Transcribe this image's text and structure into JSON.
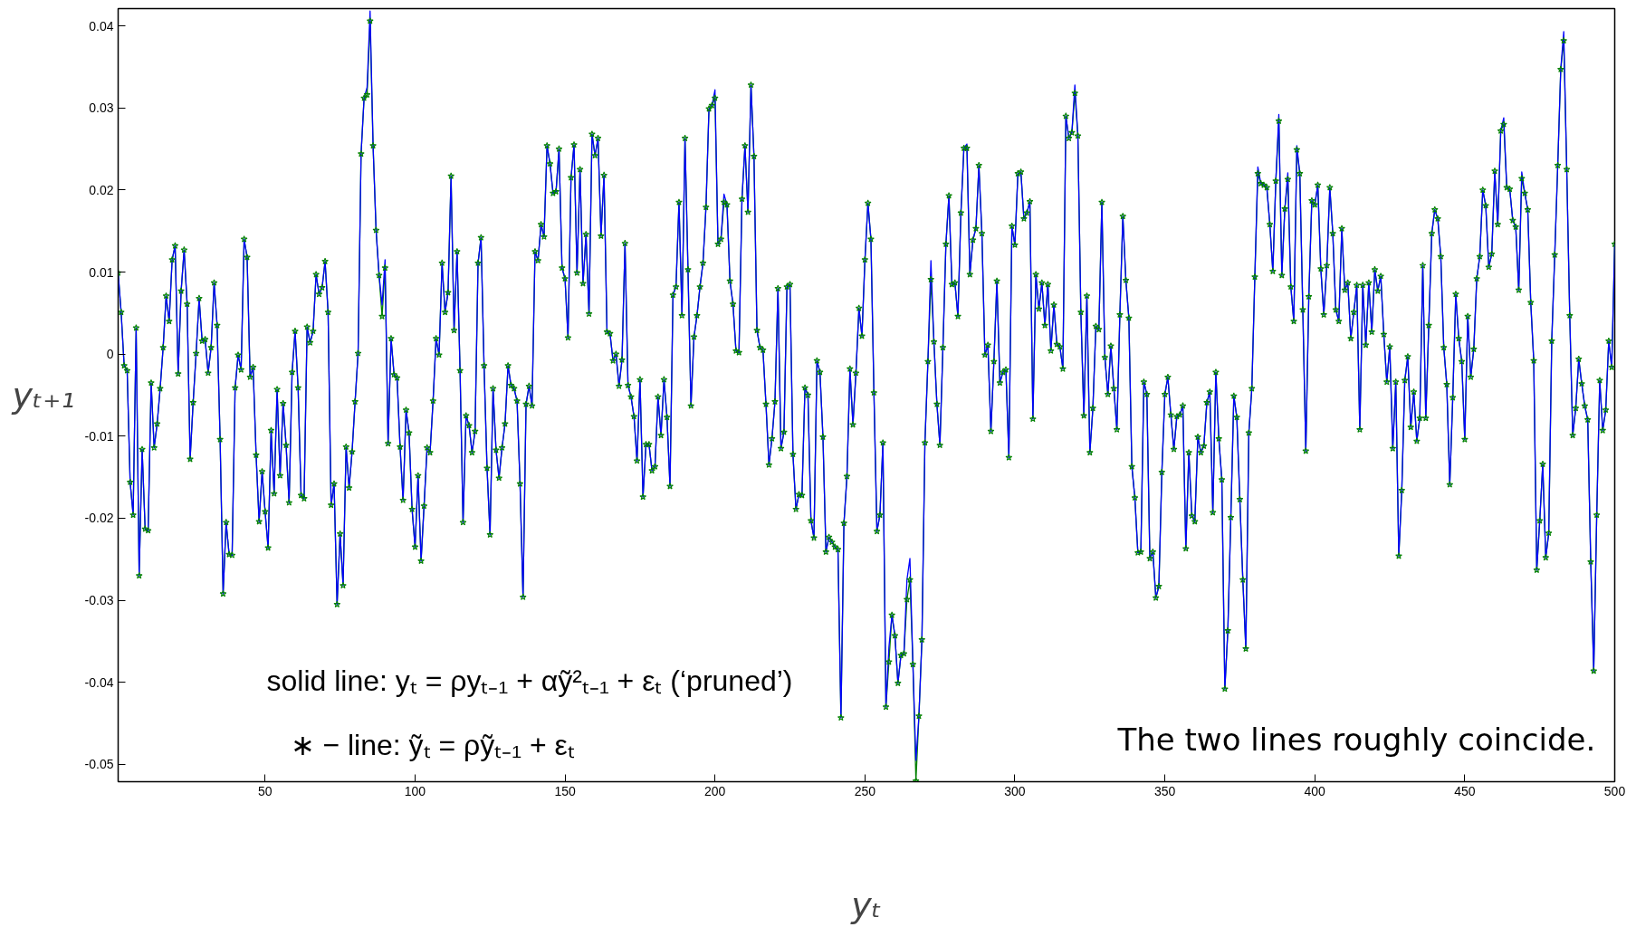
{
  "chart_data": {
    "type": "line",
    "xlabel": "yₜ",
    "ylabel": "yₜ₊₁",
    "annotations": [
      "solid line: yₜ = ρyₜ₋₁ + αỹ²ₜ₋₁ + εₜ (‘pruned’)",
      "∗ − line: ỹₜ = ρỹₜ₋₁ + εₜ",
      "The two lines roughly coincide."
    ],
    "xlim": [
      1,
      500
    ],
    "ylim": [
      -0.0521,
      0.0421
    ],
    "xticks": [
      50,
      100,
      150,
      200,
      250,
      300,
      350,
      400,
      450,
      500
    ],
    "yticks": [
      -0.05,
      -0.04,
      -0.03,
      -0.02,
      -0.01,
      0,
      0.01,
      0.02,
      0.03,
      0.04
    ],
    "grid": false,
    "x": [
      1,
      2,
      3,
      4,
      5,
      6,
      7,
      8,
      9,
      10,
      11,
      12,
      13,
      14,
      15,
      16,
      17,
      18,
      19,
      20,
      21,
      22,
      23,
      24,
      25,
      26,
      27,
      28,
      29,
      30,
      31,
      32,
      33,
      34,
      35,
      36,
      37,
      38,
      39,
      40,
      41,
      42,
      43,
      44,
      45,
      46,
      47,
      48,
      49,
      50,
      51,
      52,
      53,
      54,
      55,
      56,
      57,
      58,
      59,
      60,
      61,
      62,
      63,
      64,
      65,
      66,
      67,
      68,
      69,
      70,
      71,
      72,
      73,
      74,
      75,
      76,
      77,
      78,
      79,
      80,
      81,
      82,
      83,
      84,
      85,
      86,
      87,
      88,
      89,
      90,
      91,
      92,
      93,
      94,
      95,
      96,
      97,
      98,
      99,
      100,
      101,
      102,
      103,
      104,
      105,
      106,
      107,
      108,
      109,
      110,
      111,
      112,
      113,
      114,
      115,
      116,
      117,
      118,
      119,
      120,
      121,
      122,
      123,
      124,
      125,
      126,
      127,
      128,
      129,
      130,
      131,
      132,
      133,
      134,
      135,
      136,
      137,
      138,
      139,
      140,
      141,
      142,
      143,
      144,
      145,
      146,
      147,
      148,
      149,
      150,
      151,
      152,
      153,
      154,
      155,
      156,
      157,
      158,
      159,
      160,
      161,
      162,
      163,
      164,
      165,
      166,
      167,
      168,
      169,
      170,
      171,
      172,
      173,
      174,
      175,
      176,
      177,
      178,
      179,
      180,
      181,
      182,
      183,
      184,
      185,
      186,
      187,
      188,
      189,
      190,
      191,
      192,
      193,
      194,
      195,
      196,
      197,
      198,
      199,
      200,
      201,
      202,
      203,
      204,
      205,
      206,
      207,
      208,
      209,
      210,
      211,
      212,
      213,
      214,
      215,
      216,
      217,
      218,
      219,
      220,
      221,
      222,
      223,
      224,
      225,
      226,
      227,
      228,
      229,
      230,
      231,
      232,
      233,
      234,
      235,
      236,
      237,
      238,
      239,
      240,
      241,
      242,
      243,
      244,
      245,
      246,
      247,
      248,
      249,
      250,
      251,
      252,
      253,
      254,
      255,
      256,
      257,
      258,
      259,
      260,
      261,
      262,
      263,
      264,
      265,
      266,
      267,
      268,
      269,
      270,
      271,
      272,
      273,
      274,
      275,
      276,
      277,
      278,
      279,
      280,
      281,
      282,
      283,
      284,
      285,
      286,
      287,
      288,
      289,
      290,
      291,
      292,
      293,
      294,
      295,
      296,
      297,
      298,
      299,
      300,
      301,
      302,
      303,
      304,
      305,
      306,
      307,
      308,
      309,
      310,
      311,
      312,
      313,
      314,
      315,
      316,
      317,
      318,
      319,
      320,
      321,
      322,
      323,
      324,
      325,
      326,
      327,
      328,
      329,
      330,
      331,
      332,
      333,
      334,
      335,
      336,
      337,
      338,
      339,
      340,
      341,
      342,
      343,
      344,
      345,
      346,
      347,
      348,
      349,
      350,
      351,
      352,
      353,
      354,
      355,
      356,
      357,
      358,
      359,
      360,
      361,
      362,
      363,
      364,
      365,
      366,
      367,
      368,
      369,
      370,
      371,
      372,
      373,
      374,
      375,
      376,
      377,
      378,
      379,
      380,
      381,
      382,
      383,
      384,
      385,
      386,
      387,
      388,
      389,
      390,
      391,
      392,
      393,
      394,
      395,
      396,
      397,
      398,
      399,
      400,
      401,
      402,
      403,
      404,
      405,
      406,
      407,
      408,
      409,
      410,
      411,
      412,
      413,
      414,
      415,
      416,
      417,
      418,
      419,
      420,
      421,
      422,
      423,
      424,
      425,
      426,
      427,
      428,
      429,
      430,
      431,
      432,
      433,
      434,
      435,
      436,
      437,
      438,
      439,
      440,
      441,
      442,
      443,
      444,
      445,
      446,
      447,
      448,
      449,
      450,
      451,
      452,
      453,
      454,
      455,
      456,
      457,
      458,
      459,
      460,
      461,
      462,
      463,
      464,
      465,
      466,
      467,
      468,
      469,
      470,
      471,
      472,
      473,
      474,
      475,
      476,
      477,
      478,
      479,
      480,
      481,
      482,
      483,
      484,
      485,
      486,
      487,
      488,
      489,
      490,
      491,
      492,
      493,
      494,
      495,
      496,
      497,
      498,
      499,
      500
    ],
    "series": [
      {
        "color": "#008000",
        "marker": "star",
        "line_style": "solid",
        "values": [
          0.0099,
          0.0051,
          -0.0014,
          -0.002,
          -0.0156,
          -0.0196,
          0.0032,
          -0.027,
          -0.0116,
          -0.0213,
          -0.0215,
          -0.0035,
          -0.0114,
          -0.0085,
          -0.0042,
          0.0008,
          0.0071,
          0.004,
          0.0115,
          0.0132,
          -0.0024,
          0.0077,
          0.0127,
          0.0061,
          -0.0128,
          -0.0059,
          0.0001,
          0.0068,
          0.0016,
          0.0018,
          -0.0023,
          0.0008,
          0.0087,
          0.0035,
          -0.0104,
          -0.0292,
          -0.0205,
          -0.0244,
          -0.0245,
          -0.0041,
          -0.0001,
          -0.0019,
          0.014,
          0.0118,
          -0.0028,
          -0.0016,
          -0.0123,
          -0.0204,
          -0.0143,
          -0.0192,
          -0.0236,
          -0.0093,
          -0.017,
          -0.0043,
          -0.0148,
          -0.006,
          -0.0111,
          -0.0181,
          -0.0022,
          0.0028,
          -0.0041,
          -0.0172,
          -0.0176,
          0.0033,
          0.0014,
          0.0028,
          0.0097,
          0.0073,
          0.0081,
          0.0113,
          0.0051,
          -0.0184,
          -0.0158,
          -0.0305,
          -0.0219,
          -0.0282,
          -0.0113,
          -0.0163,
          -0.0119,
          -0.0058,
          0.0001,
          0.0244,
          0.0312,
          0.0316,
          0.0406,
          0.0254,
          0.0151,
          0.0096,
          0.0046,
          0.0105,
          -0.0109,
          0.0019,
          -0.0025,
          -0.0029,
          -0.0113,
          -0.0178,
          -0.0068,
          -0.0096,
          -0.0189,
          -0.0235,
          -0.0148,
          -0.0252,
          -0.0185,
          -0.0114,
          -0.012,
          -0.0057,
          0.0019,
          -0.0001,
          0.0111,
          0.0051,
          0.0075,
          0.0217,
          0.0029,
          0.0125,
          -0.002,
          -0.0205,
          -0.0075,
          -0.0087,
          -0.012,
          -0.0094,
          0.0111,
          0.0142,
          -0.0014,
          -0.0139,
          -0.022,
          -0.0042,
          -0.0117,
          -0.0151,
          -0.0114,
          -0.0085,
          -0.0014,
          -0.0038,
          -0.0042,
          -0.0057,
          -0.0158,
          -0.0296,
          -0.0061,
          -0.0039,
          -0.0063,
          0.0125,
          0.0114,
          0.0158,
          0.0143,
          0.0254,
          0.0232,
          0.0196,
          0.0198,
          0.025,
          0.0105,
          0.0092,
          0.002,
          0.0215,
          0.0255,
          0.0099,
          0.0225,
          0.0086,
          0.0146,
          0.0049,
          0.0268,
          0.0242,
          0.0263,
          0.0144,
          0.0218,
          0.0027,
          0.0025,
          -0.0008,
          0.0,
          -0.0039,
          -0.0007,
          0.0135,
          -0.0038,
          -0.0052,
          -0.0076,
          -0.013,
          -0.0031,
          -0.0174,
          -0.011,
          -0.011,
          -0.0142,
          -0.0137,
          -0.0052,
          -0.0099,
          -0.0031,
          -0.0077,
          -0.0161,
          0.0072,
          0.0082,
          0.0185,
          0.0047,
          0.0263,
          0.0103,
          -0.0063,
          0.0021,
          0.0047,
          0.0082,
          0.0111,
          0.0179,
          0.0299,
          0.0303,
          0.0312,
          0.0134,
          0.014,
          0.0185,
          0.0182,
          0.0089,
          0.0061,
          0.0004,
          0.0002,
          0.0189,
          0.0254,
          0.0173,
          0.0328,
          0.0241,
          0.0029,
          0.0008,
          0.0005,
          -0.0061,
          -0.0135,
          -0.0103,
          -0.0058,
          0.008,
          -0.0115,
          -0.0095,
          0.0082,
          0.0085,
          -0.0122,
          -0.0189,
          -0.0171,
          -0.0172,
          -0.0041,
          -0.005,
          -0.0203,
          -0.0224,
          -0.0008,
          -0.0022,
          -0.0101,
          -0.0241,
          -0.0223,
          -0.0229,
          -0.0235,
          -0.0238,
          -0.0443,
          -0.0206,
          -0.0149,
          -0.0018,
          -0.0086,
          -0.0023,
          0.0056,
          0.0022,
          0.0115,
          0.0184,
          0.014,
          -0.0047,
          -0.0216,
          -0.0196,
          -0.0108,
          -0.043,
          -0.0375,
          -0.0318,
          -0.0343,
          -0.0401,
          -0.0367,
          -0.0365,
          -0.0299,
          -0.0275,
          -0.0378,
          -0.052,
          -0.0441,
          -0.0348,
          -0.0108,
          -0.0009,
          0.0091,
          0.0015,
          -0.0061,
          -0.0111,
          0.0008,
          0.0134,
          0.0193,
          0.0085,
          0.0087,
          0.0046,
          0.0172,
          0.0251,
          0.0251,
          0.0097,
          0.0139,
          0.0153,
          0.023,
          0.0147,
          -0.0001,
          0.0011,
          -0.0094,
          -0.0009,
          0.0089,
          -0.0035,
          -0.0022,
          -0.0019,
          -0.0126,
          0.0156,
          0.0133,
          0.022,
          0.0222,
          0.0165,
          0.0172,
          0.0186,
          -0.0079,
          0.0097,
          0.0055,
          0.0087,
          0.0035,
          0.0085,
          0.0004,
          0.006,
          0.0012,
          0.0009,
          -0.0018,
          0.029,
          0.0263,
          0.027,
          0.0318,
          0.0266,
          0.0051,
          -0.0075,
          0.0071,
          -0.012,
          -0.0066,
          0.0034,
          0.003,
          0.0185,
          -0.0004,
          -0.0049,
          0.001,
          -0.0042,
          -0.0092,
          0.0048,
          0.0168,
          0.009,
          0.0044,
          -0.0137,
          -0.0175,
          -0.0242,
          -0.0241,
          -0.0034,
          -0.0049,
          -0.0249,
          -0.0241,
          -0.0297,
          -0.0283,
          -0.0144,
          -0.0049,
          -0.0028,
          -0.0074,
          -0.0116,
          -0.0076,
          -0.0074,
          -0.0063,
          -0.0237,
          -0.012,
          -0.0197,
          -0.0204,
          -0.0101,
          -0.012,
          -0.0112,
          -0.0059,
          -0.0046,
          -0.0193,
          -0.0022,
          -0.0103,
          -0.0153,
          -0.0408,
          -0.0337,
          -0.0199,
          -0.0051,
          -0.0077,
          -0.0177,
          -0.0275,
          -0.0359,
          -0.0096,
          -0.0042,
          0.0094,
          0.022,
          0.0208,
          0.0206,
          0.0203,
          0.0158,
          0.0101,
          0.0211,
          0.0284,
          0.0096,
          0.0177,
          0.0213,
          0.0082,
          0.004,
          0.0249,
          0.022,
          0.0054,
          -0.0118,
          0.007,
          0.0187,
          0.0182,
          0.0206,
          0.0104,
          0.0048,
          0.0108,
          0.0203,
          0.0147,
          0.0054,
          0.004,
          0.0153,
          0.0078,
          0.0087,
          0.0019,
          0.0051,
          0.0084,
          -0.0092,
          0.0084,
          0.0011,
          0.0087,
          0.0027,
          0.0103,
          0.0077,
          0.0095,
          0.0024,
          -0.0034,
          0.0009,
          -0.0115,
          -0.0034,
          -0.0246,
          -0.0166,
          -0.0032,
          -0.0003,
          -0.0089,
          -0.0046,
          -0.0106,
          -0.0078,
          0.0108,
          -0.0078,
          0.0035,
          0.0147,
          0.0176,
          0.0165,
          0.0119,
          0.0008,
          -0.0037,
          -0.0159,
          -0.0053,
          0.0073,
          0.0019,
          -0.0009,
          -0.0104,
          0.0046,
          -0.0028,
          0.0006,
          0.0092,
          0.0119,
          0.02,
          0.0181,
          0.0106,
          0.0122,
          0.0223,
          0.0158,
          0.0272,
          0.028,
          0.0203,
          0.0201,
          0.0163,
          0.0155,
          0.0078,
          0.0214,
          0.0196,
          0.0176,
          0.0063,
          -0.0008,
          -0.0263,
          -0.0203,
          -0.0134,
          -0.0248,
          -0.0218,
          0.0016,
          0.0121,
          0.023,
          0.0347,
          0.0382,
          0.0225,
          0.0047,
          -0.0099,
          -0.0066,
          -0.0006,
          -0.0036,
          -0.0063,
          -0.008,
          -0.0253,
          -0.0386,
          -0.0196,
          -0.0032,
          -0.0093,
          -0.0068,
          0.0016,
          -0.0016,
          0.0134
        ]
      },
      {
        "color": "#0000ff",
        "marker": "none",
        "line_style": "solid",
        "values": [
          0.0099,
          0.0051,
          -0.0014,
          -0.002,
          -0.0156,
          -0.0196,
          0.0032,
          -0.027,
          -0.0116,
          -0.0213,
          -0.0215,
          -0.0035,
          -0.0114,
          -0.0085,
          -0.0042,
          0.0008,
          0.0071,
          0.004,
          0.0115,
          0.0132,
          -0.0024,
          0.0077,
          0.0127,
          0.0061,
          -0.0128,
          -0.0059,
          0.0001,
          0.0068,
          0.0016,
          0.0018,
          -0.0023,
          0.0008,
          0.0087,
          0.0035,
          -0.0104,
          -0.0292,
          -0.0205,
          -0.0244,
          -0.0245,
          -0.0041,
          -0.0001,
          -0.0019,
          0.014,
          0.0118,
          -0.0028,
          -0.0016,
          -0.0123,
          -0.0204,
          -0.0143,
          -0.0192,
          -0.0236,
          -0.0093,
          -0.017,
          -0.0043,
          -0.0148,
          -0.006,
          -0.0111,
          -0.0181,
          -0.0022,
          0.0028,
          -0.0041,
          -0.0172,
          -0.0176,
          0.0033,
          0.0014,
          0.0028,
          0.0097,
          0.0073,
          0.0081,
          0.0113,
          0.0051,
          -0.0184,
          -0.0158,
          -0.0305,
          -0.0219,
          -0.0282,
          -0.0113,
          -0.0163,
          -0.0119,
          -0.0058,
          0.0001,
          0.0244,
          0.0312,
          0.0325,
          0.0418,
          0.0254,
          0.0151,
          0.0096,
          0.006,
          0.0115,
          -0.0109,
          0.0019,
          -0.0025,
          -0.0029,
          -0.0113,
          -0.0178,
          -0.0068,
          -0.0096,
          -0.0189,
          -0.0235,
          -0.0148,
          -0.0252,
          -0.0185,
          -0.0114,
          -0.012,
          -0.0057,
          0.0019,
          -0.0001,
          0.0111,
          0.0051,
          0.0075,
          0.0217,
          0.0029,
          0.0125,
          -0.002,
          -0.0205,
          -0.0075,
          -0.0087,
          -0.012,
          -0.0094,
          0.0111,
          0.0142,
          -0.0014,
          -0.0139,
          -0.022,
          -0.0042,
          -0.0117,
          -0.0151,
          -0.0114,
          -0.0085,
          -0.0014,
          -0.0038,
          -0.0042,
          -0.0057,
          -0.0158,
          -0.0296,
          -0.0061,
          -0.0039,
          -0.0063,
          0.0125,
          0.0114,
          0.0158,
          0.0143,
          0.0254,
          0.0232,
          0.0196,
          0.0198,
          0.025,
          0.0105,
          0.0092,
          0.002,
          0.0215,
          0.0255,
          0.0099,
          0.0225,
          0.0086,
          0.0146,
          0.0049,
          0.0268,
          0.0242,
          0.0263,
          0.0144,
          0.0218,
          0.0027,
          0.0025,
          -0.0008,
          0.0,
          -0.0039,
          -0.0007,
          0.0135,
          -0.0038,
          -0.0052,
          -0.0076,
          -0.013,
          -0.0031,
          -0.0174,
          -0.011,
          -0.011,
          -0.0142,
          -0.0137,
          -0.0052,
          -0.0099,
          -0.0031,
          -0.0077,
          -0.0161,
          0.0072,
          0.0082,
          0.0185,
          0.0047,
          0.0263,
          0.0103,
          -0.0063,
          0.0021,
          0.0047,
          0.0082,
          0.0111,
          0.0179,
          0.0299,
          0.0303,
          0.0322,
          0.0134,
          0.014,
          0.0195,
          0.0182,
          0.0089,
          0.0061,
          0.0004,
          0.0002,
          0.0189,
          0.0254,
          0.0173,
          0.0328,
          0.0241,
          0.0029,
          0.0008,
          0.0005,
          -0.0061,
          -0.0135,
          -0.0103,
          -0.0058,
          0.008,
          -0.0115,
          -0.0095,
          0.0082,
          0.0085,
          -0.0122,
          -0.0189,
          -0.0171,
          -0.0172,
          -0.0041,
          -0.005,
          -0.0203,
          -0.0224,
          -0.0008,
          -0.0022,
          -0.0101,
          -0.0241,
          -0.0223,
          -0.0229,
          -0.0235,
          -0.0238,
          -0.0443,
          -0.0206,
          -0.0149,
          -0.0018,
          -0.0086,
          -0.0023,
          0.0056,
          0.0022,
          0.0115,
          0.0184,
          0.014,
          -0.0047,
          -0.0216,
          -0.0196,
          -0.0108,
          -0.043,
          -0.0357,
          -0.0318,
          -0.0343,
          -0.0401,
          -0.0367,
          -0.0365,
          -0.0275,
          -0.0249,
          -0.0378,
          -0.0495,
          -0.0441,
          -0.0348,
          -0.0108,
          -0.0009,
          0.0114,
          0.0015,
          -0.0061,
          -0.0111,
          0.0008,
          0.0134,
          0.0193,
          0.0085,
          0.0087,
          0.0046,
          0.0172,
          0.0251,
          0.0256,
          0.0097,
          0.0139,
          0.0153,
          0.023,
          0.0147,
          -0.0001,
          0.0011,
          -0.0094,
          -0.0009,
          0.0089,
          -0.0035,
          -0.0022,
          -0.0019,
          -0.0126,
          0.0156,
          0.0133,
          0.022,
          0.0222,
          0.0165,
          0.0172,
          0.0186,
          -0.0079,
          0.0097,
          0.0055,
          0.0087,
          0.0035,
          0.0085,
          0.0004,
          0.006,
          0.0012,
          0.0009,
          -0.0018,
          0.029,
          0.0263,
          0.027,
          0.0328,
          0.0266,
          0.0051,
          -0.0075,
          0.0071,
          -0.012,
          -0.0066,
          0.0034,
          0.003,
          0.0185,
          -0.0004,
          -0.0049,
          0.001,
          -0.0042,
          -0.0092,
          0.0048,
          0.0168,
          0.009,
          0.0044,
          -0.0137,
          -0.0175,
          -0.0242,
          -0.0241,
          -0.0034,
          -0.0049,
          -0.0249,
          -0.0241,
          -0.0297,
          -0.0283,
          -0.0144,
          -0.0049,
          -0.0028,
          -0.0074,
          -0.0116,
          -0.0076,
          -0.0074,
          -0.0063,
          -0.0237,
          -0.012,
          -0.0197,
          -0.0204,
          -0.0101,
          -0.012,
          -0.0112,
          -0.0059,
          -0.0046,
          -0.0193,
          -0.0022,
          -0.0103,
          -0.0153,
          -0.0408,
          -0.0337,
          -0.0199,
          -0.0051,
          -0.0077,
          -0.0177,
          -0.0275,
          -0.0359,
          -0.0096,
          -0.0042,
          0.0094,
          0.0228,
          0.0208,
          0.0206,
          0.0203,
          0.0158,
          0.0101,
          0.0211,
          0.0292,
          0.0096,
          0.0177,
          0.0221,
          0.0082,
          0.004,
          0.0254,
          0.022,
          0.0054,
          -0.0118,
          0.007,
          0.0187,
          0.0182,
          0.0206,
          0.0104,
          0.0048,
          0.0108,
          0.0203,
          0.0147,
          0.0054,
          0.004,
          0.0153,
          0.0078,
          0.0087,
          0.0019,
          0.0051,
          0.0084,
          -0.0092,
          0.0084,
          0.0011,
          0.0087,
          0.0027,
          0.0103,
          0.0077,
          0.0095,
          0.0024,
          -0.0034,
          0.0009,
          -0.0115,
          -0.0034,
          -0.0246,
          -0.0166,
          -0.0032,
          -0.0003,
          -0.0089,
          -0.0046,
          -0.0106,
          -0.0078,
          0.0108,
          -0.0078,
          0.0035,
          0.0147,
          0.0176,
          0.0165,
          0.0119,
          0.0008,
          -0.0037,
          -0.0159,
          -0.0053,
          0.0073,
          0.0019,
          -0.0009,
          -0.0104,
          0.0046,
          -0.0028,
          0.0006,
          0.0092,
          0.0119,
          0.02,
          0.0181,
          0.0106,
          0.0122,
          0.0223,
          0.0158,
          0.0272,
          0.0288,
          0.0203,
          0.0201,
          0.0163,
          0.0155,
          0.0078,
          0.0222,
          0.0196,
          0.0176,
          0.0063,
          -0.0008,
          -0.0263,
          -0.0203,
          -0.0134,
          -0.0248,
          -0.0218,
          0.0016,
          0.0121,
          0.023,
          0.0347,
          0.0393,
          0.0225,
          0.0047,
          -0.0099,
          -0.0066,
          -0.0006,
          -0.0036,
          -0.0063,
          -0.008,
          -0.0253,
          -0.0386,
          -0.0196,
          -0.0032,
          -0.0093,
          -0.0068,
          0.0016,
          -0.0016,
          0.0134
        ]
      }
    ]
  }
}
